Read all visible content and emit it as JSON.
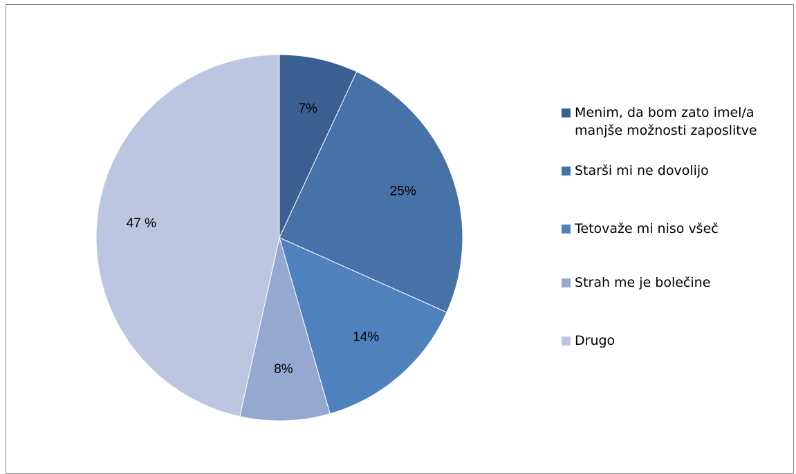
{
  "chart_data": {
    "type": "pie",
    "title": "",
    "start_angle_deg": 0,
    "direction": "clockwise",
    "legend_position": "right",
    "slices": [
      {
        "name": "Menim, da bom zato imel/a manjše možnosti zaposlitve",
        "value": 7,
        "label": "7%",
        "color": "#3A5F91"
      },
      {
        "name": "Starši mi ne dovolijo",
        "value": 25,
        "label": "25%",
        "color": "#4672A8"
      },
      {
        "name": "Tetovaže mi niso všeč",
        "value": 14,
        "label": "14%",
        "color": "#4F81BD"
      },
      {
        "name": "Strah me je bolečine",
        "value": 8,
        "label": "8%",
        "color": "#95A9D0"
      },
      {
        "name": "Drugo",
        "value": 47,
        "label": "47 %",
        "color": "#BBC7E0"
      }
    ]
  },
  "legend": {
    "items": [
      {
        "label": "Menim, da bom zato imel/a\nmanjše možnosti zaposlitve",
        "color": "#3A5F91"
      },
      {
        "label": "Starši mi ne dovolijo",
        "color": "#4672A8"
      },
      {
        "label": "Tetovaže mi niso všeč",
        "color": "#4F81BD"
      },
      {
        "label": "Strah me je bolečine",
        "color": "#95A9D0"
      },
      {
        "label": "Drugo",
        "color": "#BBC7E0"
      }
    ]
  }
}
